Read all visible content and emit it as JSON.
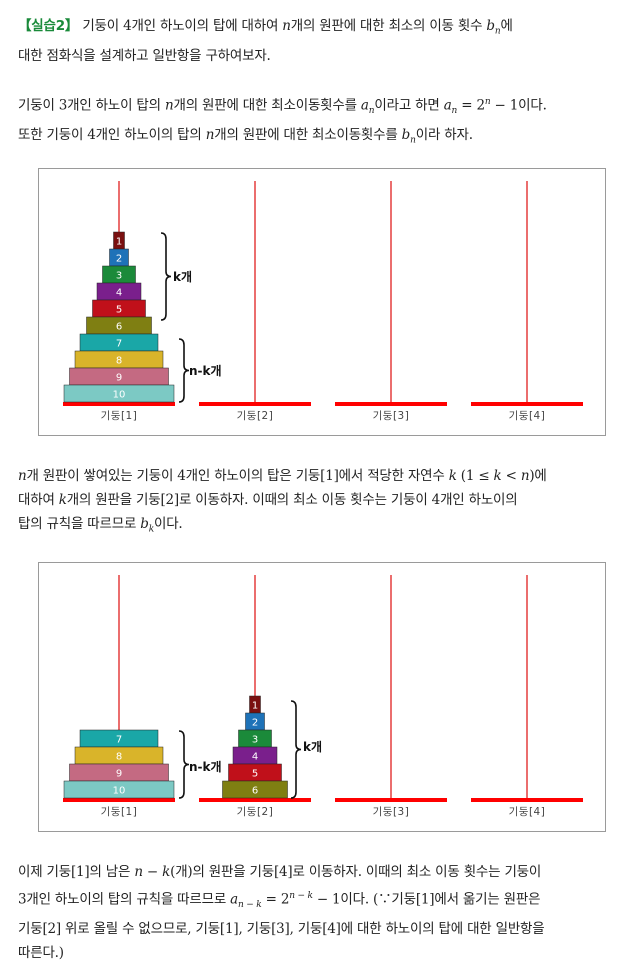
{
  "exercise": {
    "tag": "【실습2】",
    "text_a": " 기둥이 4개인 하노이의 탑에 대하여 ",
    "n": "n",
    "text_b": "개의 원판에 대한 최소의 이동 횟수 ",
    "b": "b",
    "sub_n": "n",
    "text_c": "에",
    "line2": "대한 점화식을 설계하고 일반항을 구하여보자."
  },
  "intro": {
    "l1a": "기둥이 3개인 하노이 탑의 ",
    "n": "n",
    "l1b": "개의 원판에 대한 최소이동횟수를 ",
    "a": "a",
    "sub_n": "n",
    "l1c": "이라고 하면 ",
    "formula_lhs": "a",
    "formula_sub": "n",
    "formula_eq": " = 2",
    "formula_sup": "n",
    "formula_tail": " − 1",
    "l1d": "이다.",
    "l2a": "또한 기둥이 4개인 하노이의 탑의 ",
    "l2b": "개의 원판에 대한 최소이동횟수를 ",
    "b": "b",
    "l2c": "이라 하자."
  },
  "figure1": {
    "pegs": [
      "기둥[1]",
      "기둥[2]",
      "기둥[3]",
      "기둥[4]"
    ],
    "disks": [
      "1",
      "2",
      "3",
      "4",
      "5",
      "6",
      "7",
      "8",
      "9",
      "10"
    ],
    "brace_top_label": "k개",
    "brace_bottom_label": "n-k개"
  },
  "middle": {
    "l1a": "개 원판이 쌓여있는 기둥이 4개인 하노이의 탑은 기둥[1]에서 적당한 자연수 ",
    "k": "k",
    "l1b": " (1 ≤ ",
    "l1c": " < ",
    "l1d": ")에",
    "l2a": "대하여 ",
    "l2b": "개의 원판을 기둥[2]로 이동하자. 이때의 최소 이동 횟수는 기둥이 4개인 하노이의",
    "l3a": "탑의 규칙을 따르므로 ",
    "b": "b",
    "sub_k": "k",
    "l3b": "이다."
  },
  "figure2": {
    "pegs": [
      "기둥[1]",
      "기둥[2]",
      "기둥[3]",
      "기둥[4]"
    ],
    "peg1_disks": [
      "7",
      "8",
      "9",
      "10"
    ],
    "peg2_disks": [
      "1",
      "2",
      "3",
      "4",
      "5",
      "6"
    ],
    "brace_left_label": "n-k개",
    "brace_right_label": "k개"
  },
  "final": {
    "l1a": "이제 기둥[1]의 남은 ",
    "nk": "n − k",
    "l1b": "(개)의 원판을 기둥[4]로 이동하자. 이때의 최소 이동 횟수는 기둥이",
    "l2a": "3개인 하노이의 탑의 규칙을 따르므로 ",
    "a": "a",
    "sub": "n − k",
    "eq": " = 2",
    "sup": "n − k",
    "tail": " − 1",
    "l2b": "이다. (∵기둥[1]에서 옮기는 원판은",
    "l3": "기둥[2] 위로 올릴 수 없으므로, 기둥[1], 기둥[3], 기둥[4]에 대한 하노이의 탑에 대한 일반항을",
    "l4": "따른다.)"
  },
  "colors": {
    "peg_line": "#e02020",
    "base": "#ff0000",
    "disks": {
      "1": "#7a1010",
      "2": "#1e72b8",
      "3": "#1b8a3a",
      "4": "#7a1f8c",
      "5": "#c0101a",
      "6": "#7f7f12",
      "7": "#1aa7a7",
      "8": "#d9b42a",
      "9": "#c46a82",
      "10": "#7cc9c4"
    }
  }
}
